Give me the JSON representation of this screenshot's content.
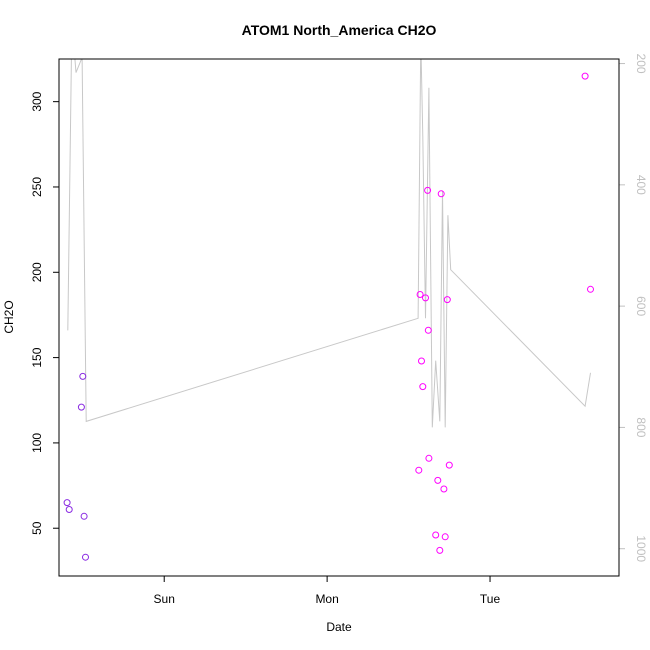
{
  "chart_data": {
    "type": "scatter",
    "title": "ATOM1 North_America CH2O",
    "xlabel": "Date",
    "ylabel": "CH2O",
    "x_tick_labels": [
      "Sun",
      "Mon",
      "Tue"
    ],
    "x_ticks_hours": [
      24,
      48,
      72
    ],
    "xlim_hours": [
      8.5,
      91
    ],
    "ylim": [
      22,
      325
    ],
    "y_ticks": [
      50,
      100,
      150,
      200,
      250,
      300
    ],
    "y2_ticks": [
      200,
      400,
      600,
      800,
      1000
    ],
    "y2lim": [
      192.5,
      1045
    ],
    "y2_reversed": true,
    "colors": {
      "line": "#c8c8c8",
      "right_axis": "#c0c0c0"
    },
    "series": [
      {
        "style": "points",
        "color": "#8a2be2",
        "x_hours": [
          9.7,
          10.0,
          11.8,
          12.0,
          12.2,
          12.4
        ],
        "values": [
          65,
          61,
          121,
          139,
          57,
          33
        ]
      },
      {
        "style": "points",
        "color": "#ff00ff",
        "x_hours": [
          61.5,
          61.7,
          61.9,
          62.1,
          62.5,
          62.8,
          62.9,
          63.0,
          64.0,
          64.3,
          64.6,
          64.8,
          65.2,
          65.4,
          65.7,
          66.0,
          86.0,
          86.8
        ],
        "values": [
          84,
          187,
          148,
          133,
          185,
          248,
          166,
          91,
          46,
          78,
          37,
          246,
          73,
          45,
          184,
          87,
          315,
          190
        ]
      },
      {
        "style": "line",
        "axis": "right",
        "color": "#c8c8c8",
        "x_hours": [
          9.8,
          10.4,
          11.0,
          11.9,
          12.5,
          61.4,
          61.8,
          62.1,
          62.5,
          63.0,
          63.5,
          64.0,
          64.6,
          65.0,
          65.4,
          65.8,
          66.2,
          86.0,
          86.8
        ],
        "values": [
          640,
          130,
          215,
          190,
          790,
          620,
          160,
          320,
          620,
          240,
          800,
          690,
          790,
          410,
          800,
          450,
          540,
          765,
          710
        ]
      }
    ]
  }
}
